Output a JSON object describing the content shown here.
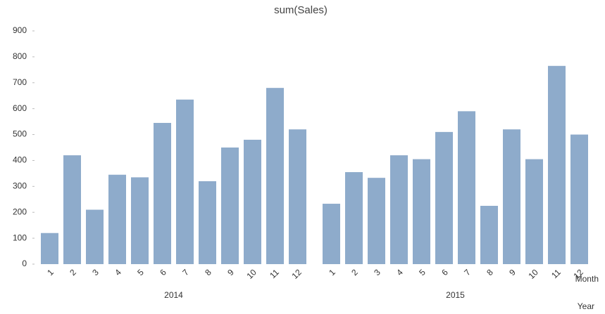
{
  "chart_data": {
    "type": "bar",
    "title": "sum(Sales)",
    "x_label": "Month",
    "group_label": "Year",
    "color": "#8eabcb",
    "groups": [
      {
        "name": "2014",
        "categories": [
          "1",
          "2",
          "3",
          "4",
          "5",
          "6",
          "7",
          "8",
          "9",
          "10",
          "11",
          "12"
        ],
        "values": [
          120,
          420,
          210,
          345,
          335,
          545,
          635,
          320,
          450,
          480,
          680,
          520
        ]
      },
      {
        "name": "2015",
        "categories": [
          "1",
          "2",
          "3",
          "4",
          "5",
          "6",
          "7",
          "8",
          "9",
          "10",
          "11",
          "12"
        ],
        "values": [
          233,
          355,
          333,
          420,
          405,
          510,
          590,
          225,
          520,
          405,
          765,
          500
        ]
      }
    ],
    "ylim": [
      0,
      900
    ],
    "yticks": [
      0,
      100,
      200,
      300,
      400,
      500,
      600,
      700,
      800,
      900
    ],
    "grid": false
  }
}
